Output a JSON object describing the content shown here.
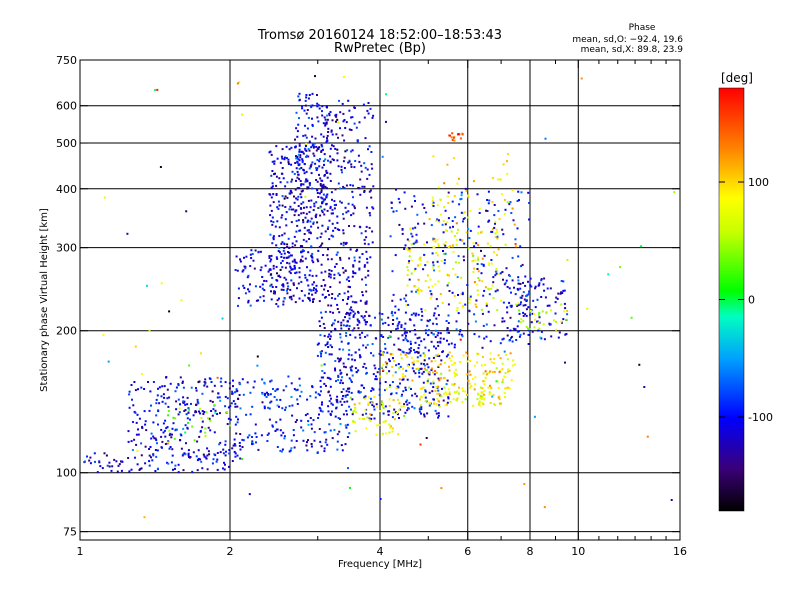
{
  "chart_data": {
    "type": "scatter",
    "title": "Tromsø 20160124 18:52:00–18:53:43",
    "subtitle": "RwPretec (Bp)",
    "xlabel": "Frequency [MHz]",
    "ylabel": "Stationary phase Virtual Height [km]",
    "xscale": "log",
    "yscale": "log",
    "xlim": [
      1,
      16
    ],
    "ylim": [
      72,
      750
    ],
    "x_ticks": [
      1,
      2,
      4,
      6,
      8,
      10,
      16
    ],
    "y_ticks": [
      75,
      100,
      200,
      300,
      400,
      500,
      600,
      750
    ],
    "grid": true,
    "stats": {
      "heading": "Phase",
      "line_o": "mean, sd,O: −92.4, 19.6",
      "line_x": "mean, sd,X: 89.8, 23.9"
    },
    "colorbar": {
      "label": "[deg]",
      "range": [
        -180,
        180
      ],
      "ticks": [
        100,
        0,
        -100
      ]
    },
    "clusters": [
      {
        "fmin": 1.02,
        "fmax": 2.1,
        "hmin": 100,
        "hmax": 110,
        "phase": -110,
        "n": 90
      },
      {
        "fmin": 1.25,
        "fmax": 2.1,
        "hmin": 108,
        "hmax": 160,
        "phase": -105,
        "n": 260
      },
      {
        "fmin": 1.5,
        "fmax": 2.0,
        "hmin": 115,
        "hmax": 140,
        "phase": 30,
        "n": 25
      },
      {
        "fmin": 2.0,
        "fmax": 3.5,
        "hmin": 110,
        "hmax": 160,
        "phase": -100,
        "n": 200
      },
      {
        "fmin": 2.05,
        "fmax": 2.7,
        "hmin": 225,
        "hmax": 300,
        "phase": -110,
        "n": 90
      },
      {
        "fmin": 2.4,
        "fmax": 3.1,
        "hmin": 230,
        "hmax": 500,
        "phase": -115,
        "n": 380
      },
      {
        "fmin": 2.7,
        "fmax": 3.15,
        "hmin": 350,
        "hmax": 640,
        "phase": -110,
        "n": 160
      },
      {
        "fmin": 3.1,
        "fmax": 3.9,
        "hmin": 200,
        "hmax": 620,
        "phase": -115,
        "n": 320
      },
      {
        "fmin": 3.0,
        "fmax": 5.5,
        "hmin": 130,
        "hmax": 220,
        "phase": -105,
        "n": 450
      },
      {
        "fmin": 3.5,
        "fmax": 4.5,
        "hmin": 120,
        "hmax": 145,
        "phase": 80,
        "n": 60
      },
      {
        "fmin": 4.0,
        "fmax": 7.5,
        "hmin": 150,
        "hmax": 180,
        "phase": 95,
        "n": 160
      },
      {
        "fmin": 4.8,
        "fmax": 7.2,
        "hmin": 138,
        "hmax": 152,
        "phase": 85,
        "n": 90
      },
      {
        "fmin": 4.5,
        "fmax": 7.0,
        "hmin": 220,
        "hmax": 330,
        "phase": 85,
        "n": 150
      },
      {
        "fmin": 5.0,
        "fmax": 7.5,
        "hmin": 300,
        "hmax": 480,
        "phase": 90,
        "n": 60
      },
      {
        "fmin": 4.2,
        "fmax": 8.0,
        "hmin": 180,
        "hmax": 400,
        "phase": -100,
        "n": 280
      },
      {
        "fmin": 7.0,
        "fmax": 9.5,
        "hmin": 190,
        "hmax": 260,
        "phase": -110,
        "n": 110
      },
      {
        "fmin": 7.5,
        "fmax": 9.5,
        "hmin": 200,
        "hmax": 230,
        "phase": 60,
        "n": 30
      },
      {
        "fmin": 5.5,
        "fmax": 5.9,
        "hmin": 505,
        "hmax": 525,
        "phase": 150,
        "n": 15
      },
      {
        "fmin": 1.0,
        "fmax": 16,
        "hmin": 80,
        "hmax": 700,
        "phase": 0,
        "n": 80
      }
    ]
  }
}
